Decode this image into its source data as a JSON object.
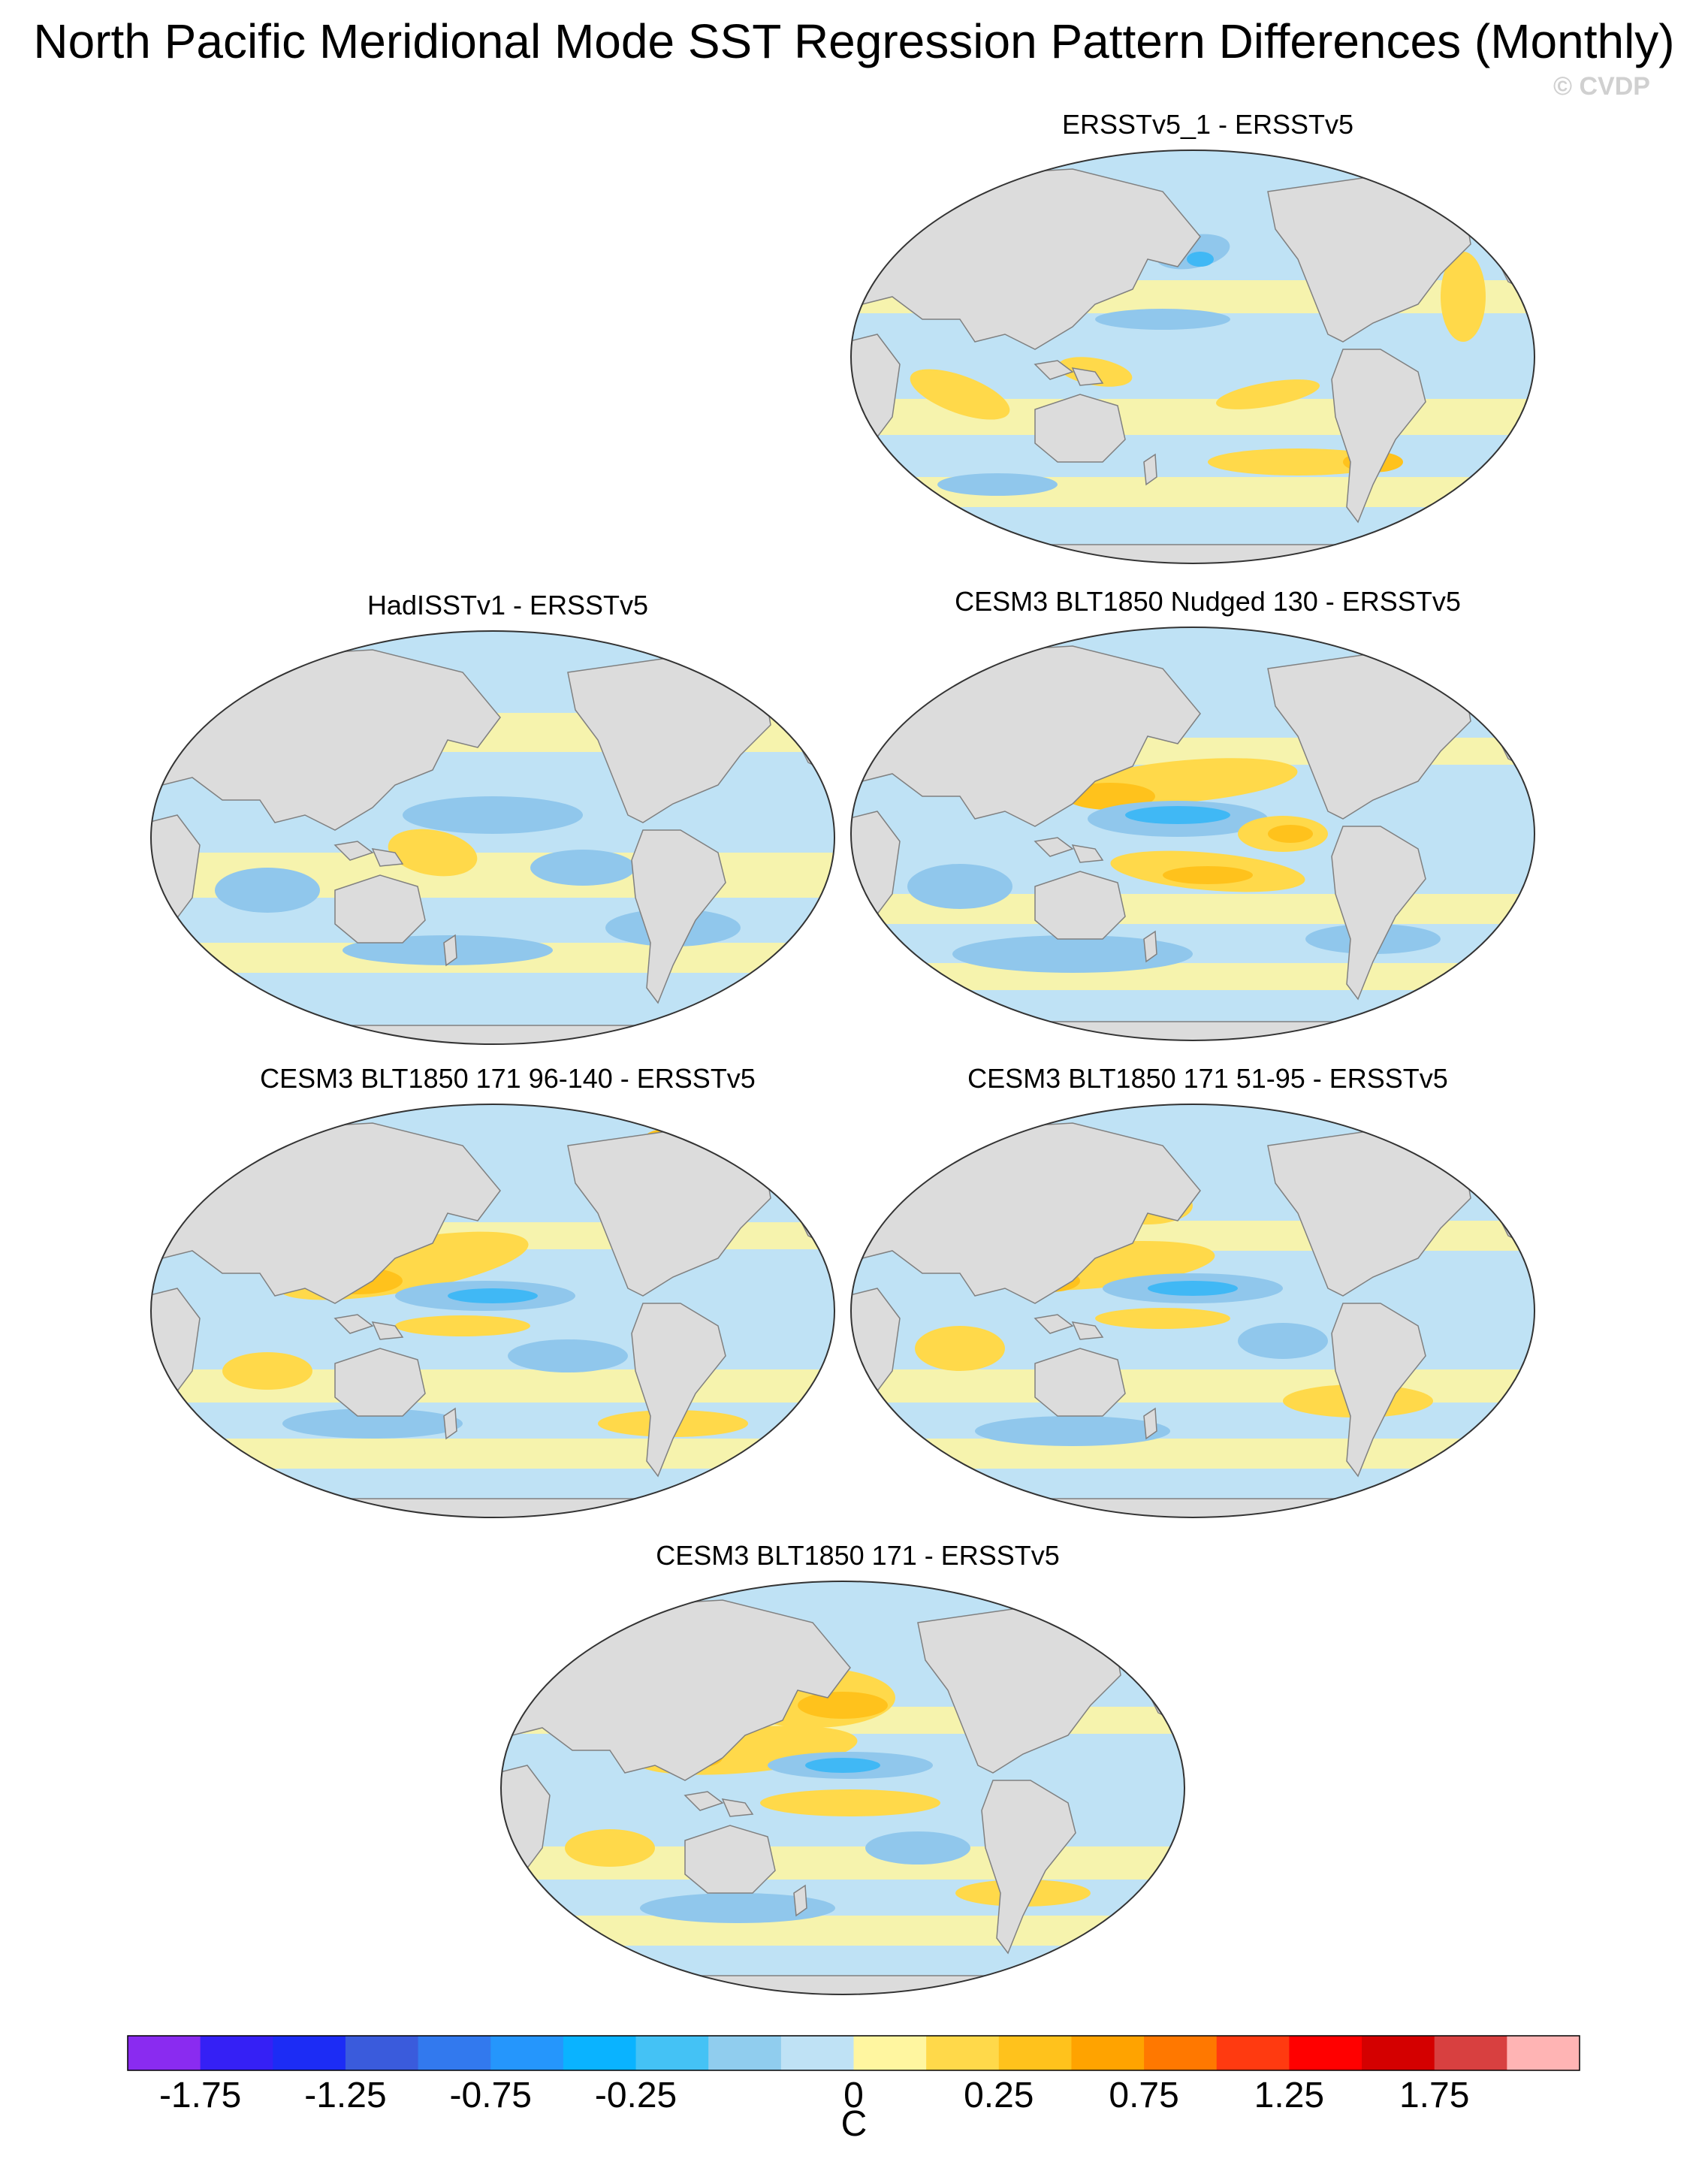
{
  "title": "North Pacific Meridional Mode SST Regression Pattern Differences (Monthly)",
  "watermark": "© CVDP",
  "colors": {
    "land": "#dcdcdc",
    "coast": "#808080",
    "ocean_neutral_pos": "#fff6a0",
    "ocean_neutral_neg": "#bfe2f5",
    "pos_mid": "#ffd94a",
    "pos_strong": "#ffc21c",
    "pos_stronger": "#ffa300",
    "neg_mid": "#90c7ec",
    "neg_strong": "#40b8f5",
    "neg_stronger": "#1fa4ff"
  },
  "panels": [
    {
      "id": "ersstv5-1",
      "title": "ERSSTv5_1 - ERSSTv5"
    },
    {
      "id": "hadisstv1",
      "title": "HadISSTv1 - ERSSTv5"
    },
    {
      "id": "nudged-130",
      "title": "CESM3 BLT1850 Nudged 130 - ERSSTv5"
    },
    {
      "id": "171-96-140",
      "title": "CESM3 BLT1850 171 96-140 - ERSSTv5"
    },
    {
      "id": "171-51-95",
      "title": "CESM3 BLT1850 171 51-95 - ERSSTv5"
    },
    {
      "id": "171",
      "title": "CESM3 BLT1850 171 - ERSSTv5"
    }
  ],
  "colorbar": {
    "unit": "C",
    "colors": [
      "#8a2bf0",
      "#3520f5",
      "#1c2cf5",
      "#3a5bdc",
      "#3279ee",
      "#2596fc",
      "#0ab3ff",
      "#44c2f5",
      "#90cdee",
      "#bfe2f5",
      "#fff6a0",
      "#ffd94a",
      "#ffc21c",
      "#ffa300",
      "#ff7800",
      "#ff3a10",
      "#ff0000",
      "#d40000",
      "#d84040",
      "#ffb4b4"
    ],
    "tick_labels": [
      "-1.75",
      "-1.25",
      "-0.75",
      "-0.25",
      "0",
      "0.25",
      "0.75",
      "1.25",
      "1.75"
    ]
  }
}
